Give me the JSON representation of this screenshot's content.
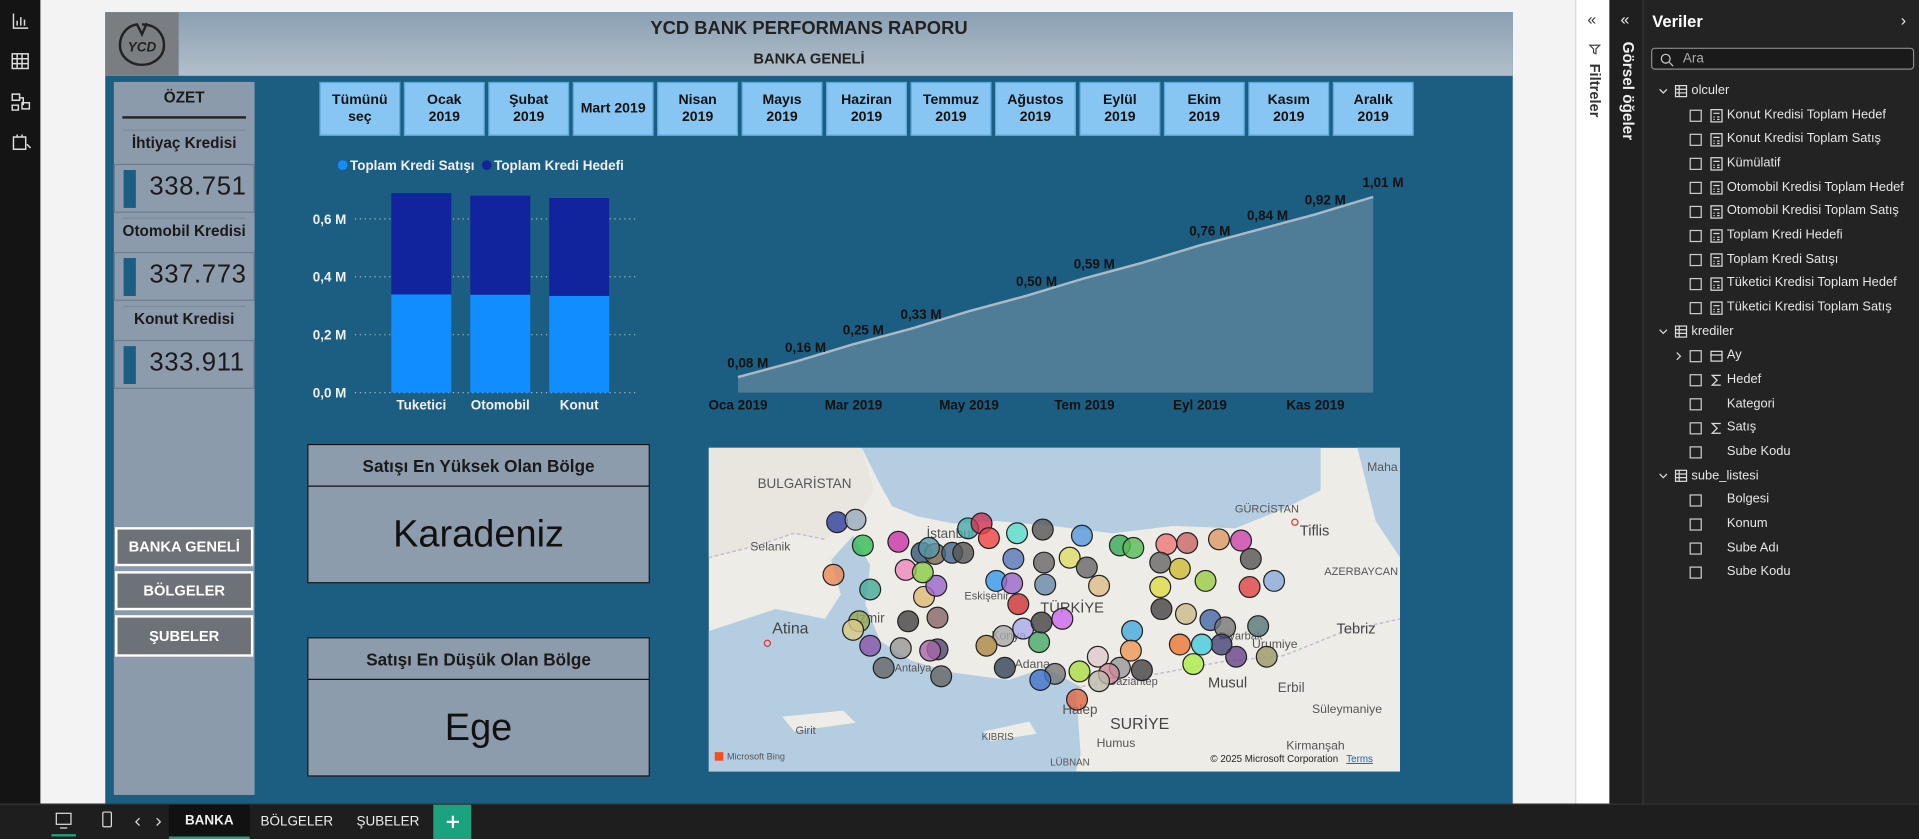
{
  "header": {
    "logo": "YCD",
    "title": "YCD BANK PERFORMANS RAPORU",
    "subtitle": "BANKA GENELİ"
  },
  "summary": {
    "title": "ÖZET",
    "cards": [
      {
        "label": "İhtiyaç Kredisi",
        "value": "338.751"
      },
      {
        "label": "Otomobil Kredisi",
        "value": "337.773"
      },
      {
        "label": "Konut Kredisi",
        "value": "333.911"
      }
    ]
  },
  "nav_buttons": [
    "BANKA GENELİ",
    "BÖLGELER",
    "ŞUBELER"
  ],
  "month_slicer": [
    "Tümünü seç",
    "Ocak 2019",
    "Şubat 2019",
    "Mart 2019",
    "Nisan 2019",
    "Mayıs 2019",
    "Haziran 2019",
    "Temmuz 2019",
    "Ağustos 2019",
    "Eylül 2019",
    "Ekim 2019",
    "Kasım 2019",
    "Aralık 2019"
  ],
  "chart_data": [
    {
      "type": "bar",
      "stacked": true,
      "legend": "top-left",
      "grid": true,
      "categories": [
        "Tuketici",
        "Otomobil",
        "Konut"
      ],
      "series": [
        {
          "name": "Toplam Kredi Satışı",
          "color": "#118dff",
          "values": [
            0.339,
            0.338,
            0.334
          ]
        },
        {
          "name": "Toplam Kredi Hedefi",
          "color": "#12239e",
          "values": [
            0.35,
            0.342,
            0.338
          ]
        }
      ],
      "ylim": [
        0,
        0.7
      ],
      "yticks": [
        {
          "value": 0,
          "label": "0,0 M"
        },
        {
          "value": 0.2,
          "label": "0,2 M"
        },
        {
          "value": 0.4,
          "label": "0,4 M"
        },
        {
          "value": 0.6,
          "label": "0,6 M"
        }
      ]
    },
    {
      "type": "area",
      "color": "#4f7d98",
      "line_color": "#a9bac6",
      "categories": [
        "Oca 2019",
        null,
        "Mar 2019",
        null,
        "May 2019",
        null,
        "Tem 2019",
        null,
        "Eyl 2019",
        null,
        "Kas 2019",
        null
      ],
      "values": [
        0.08,
        0.16,
        0.25,
        0.33,
        0.42,
        0.5,
        0.59,
        0.67,
        0.76,
        0.84,
        0.92,
        1.01
      ],
      "value_labels": [
        "0,08 M",
        "0,16 M",
        "0,25 M",
        "0,33 M",
        null,
        "0,50 M",
        "0,59 M",
        null,
        "0,76 M",
        "0,84 M",
        "0,92 M",
        "1,01 M"
      ],
      "ylim": [
        0,
        1.02
      ]
    }
  ],
  "region_cards": [
    {
      "title": "Satışı En Yüksek Olan Bölge",
      "value": "Karadeniz"
    },
    {
      "title": "Satışı En Düşük Olan Bölge",
      "value": "Ege"
    }
  ],
  "map": {
    "labels": [
      "BULGARİSTAN",
      "Selanik",
      "İstanbul",
      "Eskişehir",
      "Atina",
      "İzmir",
      "TÜRKİYE",
      "Konya",
      "Adana",
      "Antalya",
      "Gaziantep",
      "Diyarbak",
      "Halep",
      "SURİYE",
      "Humus",
      "KIBRIS",
      "LÜBNAN",
      "Girit",
      "Musul",
      "Erbil",
      "Tebriz",
      "Urumiye",
      "Süleymaniye",
      "Kirmanşah",
      "GÜRCİSTAN",
      "Tiflis",
      "AZERBAYCAN",
      "Maha"
    ],
    "bing": "Microsoft Bing",
    "copyright": "© 2025 Microsoft Corporation",
    "terms": "Terms"
  },
  "side_panel": {
    "filters": "Filtreler",
    "visuals": "Görsel öğeler",
    "title": "Veriler",
    "search": "Ara",
    "tables": [
      {
        "name": "olculer",
        "fields": [
          "Konut Kredisi Toplam Hedef",
          "Konut Kredisi Toplam Satış",
          "Kümülatif",
          "Otomobil Kredisi Toplam Hedef",
          "Otomobil Kredisi Toplam Satış",
          "Toplam Kredi Hedefi",
          "Toplam Kredi Satışı",
          "Tüketici Kredisi Toplam Hedef",
          "Tüketici Kredisi Toplam Satış"
        ]
      },
      {
        "name": "krediler",
        "fields": [
          "Ay",
          "Hedef",
          "Kategori",
          "Satış",
          "Sube Kodu"
        ]
      },
      {
        "name": "sube_listesi",
        "fields": [
          "Bolgesi",
          "Konum",
          "Sube Adı",
          "Sube Kodu"
        ]
      }
    ]
  },
  "page_tabs": [
    "BANKA",
    "BÖLGELER",
    "ŞUBELER"
  ]
}
